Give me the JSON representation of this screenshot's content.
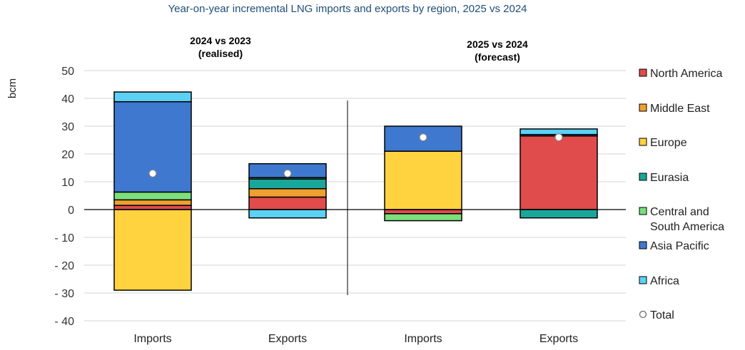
{
  "chart_data": {
    "type": "bar",
    "stacked": true,
    "title": "Year-on-year incremental LNG imports and exports by region, 2025 vs 2024",
    "ylabel": "bcm",
    "ylim": [
      -40,
      50
    ],
    "yticks": [
      50,
      40,
      30,
      20,
      10,
      0,
      -10,
      -20,
      -30,
      -40
    ],
    "ytick_labels": [
      "50",
      "40",
      "30",
      "20",
      "10",
      "0",
      "- 10",
      "- 20",
      "- 30",
      "- 40"
    ],
    "grid": true,
    "legend_position": "right",
    "panels": [
      {
        "title_line1": "2024 vs 2023",
        "title_line2": "(realised)"
      },
      {
        "title_line1": "2025 vs 2024",
        "title_line2": "(forecast)"
      }
    ],
    "categories": [
      "Imports",
      "Exports",
      "Imports",
      "Exports"
    ],
    "series": [
      {
        "name": "North America",
        "color": "#e04b4b",
        "values": [
          1.5,
          4.5,
          -1.5,
          26.5
        ]
      },
      {
        "name": "Middle East",
        "color": "#f0a030",
        "values": [
          2.0,
          3.0,
          0,
          0
        ]
      },
      {
        "name": "Europe",
        "color": "#ffd23f",
        "values": [
          -29,
          0,
          21.0,
          0
        ]
      },
      {
        "name": "Eurasia",
        "color": "#1aa79b",
        "values": [
          0,
          3.5,
          0,
          -3.0
        ]
      },
      {
        "name": "Central and South America",
        "color": "#7be07b",
        "values": [
          2.8,
          0.5,
          -2.5,
          0
        ]
      },
      {
        "name": "Asia Pacific",
        "color": "#3f78cf",
        "values": [
          32.5,
          5.0,
          9.0,
          0.5
        ]
      },
      {
        "name": "Africa",
        "color": "#5bd2f5",
        "values": [
          3.5,
          -3.0,
          0,
          2.0
        ]
      }
    ],
    "totals": [
      13,
      13,
      26,
      26
    ],
    "legend": [
      {
        "label": "North America",
        "color": "#e04b4b",
        "kind": "box"
      },
      {
        "label": "Middle East",
        "color": "#f0a030",
        "kind": "box"
      },
      {
        "label": "Europe",
        "color": "#ffd23f",
        "kind": "box"
      },
      {
        "label": "Eurasia",
        "color": "#1aa79b",
        "kind": "box"
      },
      {
        "label": "Central and South America",
        "color": "#7be07b",
        "kind": "box"
      },
      {
        "label": "Asia Pacific",
        "color": "#3f78cf",
        "kind": "box"
      },
      {
        "label": "Africa",
        "color": "#5bd2f5",
        "kind": "box"
      },
      {
        "label": "Total",
        "color": "#ffffff",
        "kind": "marker"
      }
    ]
  }
}
